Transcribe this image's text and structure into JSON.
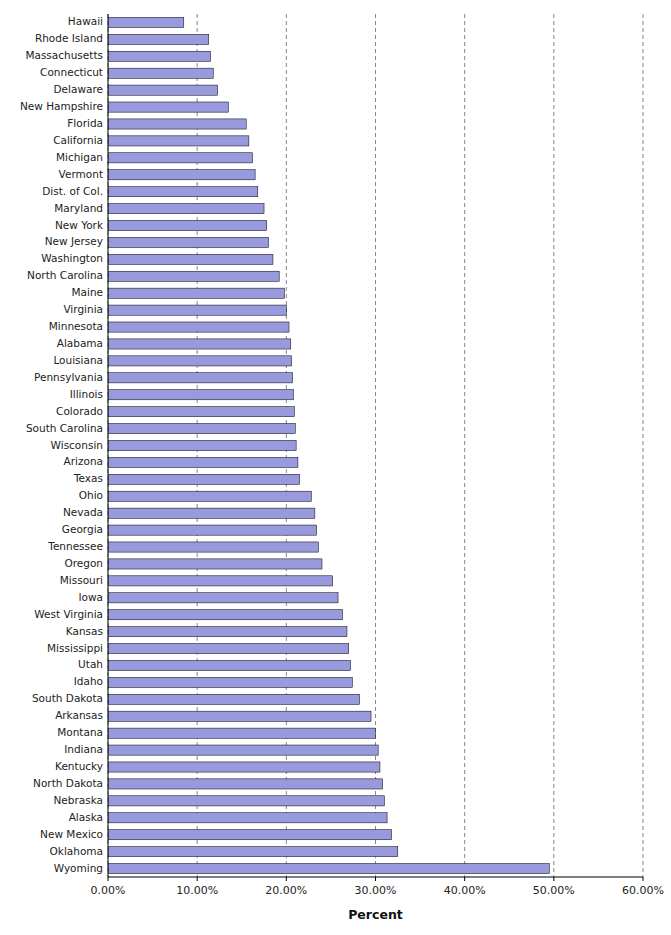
{
  "chart_data": {
    "type": "bar",
    "orientation": "horizontal",
    "xlabel": "Percent",
    "categories": [
      "Hawaii",
      "Rhode Island",
      "Massachusetts",
      "Connecticut",
      "Delaware",
      "New Hampshire",
      "Florida",
      "California",
      "Michigan",
      "Vermont",
      "Dist. of Col.",
      "Maryland",
      "New York",
      "New Jersey",
      "Washington",
      "North Carolina",
      "Maine",
      "Virginia",
      "Minnesota",
      "Alabama",
      "Louisiana",
      "Pennsylvania",
      "Illinois",
      "Colorado",
      "South Carolina",
      "Wisconsin",
      "Arizona",
      "Texas",
      "Ohio",
      "Nevada",
      "Georgia",
      "Tennessee",
      "Oregon",
      "Missouri",
      "Iowa",
      "West Virginia",
      "Kansas",
      "Mississippi",
      "Utah",
      "Idaho",
      "South Dakota",
      "Arkansas",
      "Montana",
      "Indiana",
      "Kentucky",
      "North Dakota",
      "Nebraska",
      "Alaska",
      "New Mexico",
      "Oklahoma",
      "Wyoming"
    ],
    "values": [
      8.5,
      11.3,
      11.5,
      11.8,
      12.3,
      13.5,
      15.5,
      15.8,
      16.2,
      16.5,
      16.8,
      17.5,
      17.8,
      18.0,
      18.5,
      19.2,
      19.8,
      20.0,
      20.3,
      20.5,
      20.6,
      20.7,
      20.8,
      20.9,
      21.0,
      21.1,
      21.3,
      21.5,
      22.8,
      23.2,
      23.4,
      23.6,
      24.0,
      25.2,
      25.8,
      26.3,
      26.8,
      27.0,
      27.2,
      27.4,
      28.2,
      29.5,
      30.0,
      30.3,
      30.5,
      30.8,
      31.0,
      31.3,
      31.8,
      32.5,
      49.5
    ],
    "color": "#9999dd",
    "xlim": [
      0,
      60
    ],
    "xticks": [
      {
        "value": 0,
        "label": "0.00%"
      },
      {
        "value": 10,
        "label": "10.00%"
      },
      {
        "value": 20,
        "label": "20.00%"
      },
      {
        "value": 30,
        "label": "30.00%"
      },
      {
        "value": 40,
        "label": "40.00%"
      },
      {
        "value": 50,
        "label": "50.00%"
      },
      {
        "value": 60,
        "label": "60.00%"
      }
    ],
    "grid": true
  }
}
